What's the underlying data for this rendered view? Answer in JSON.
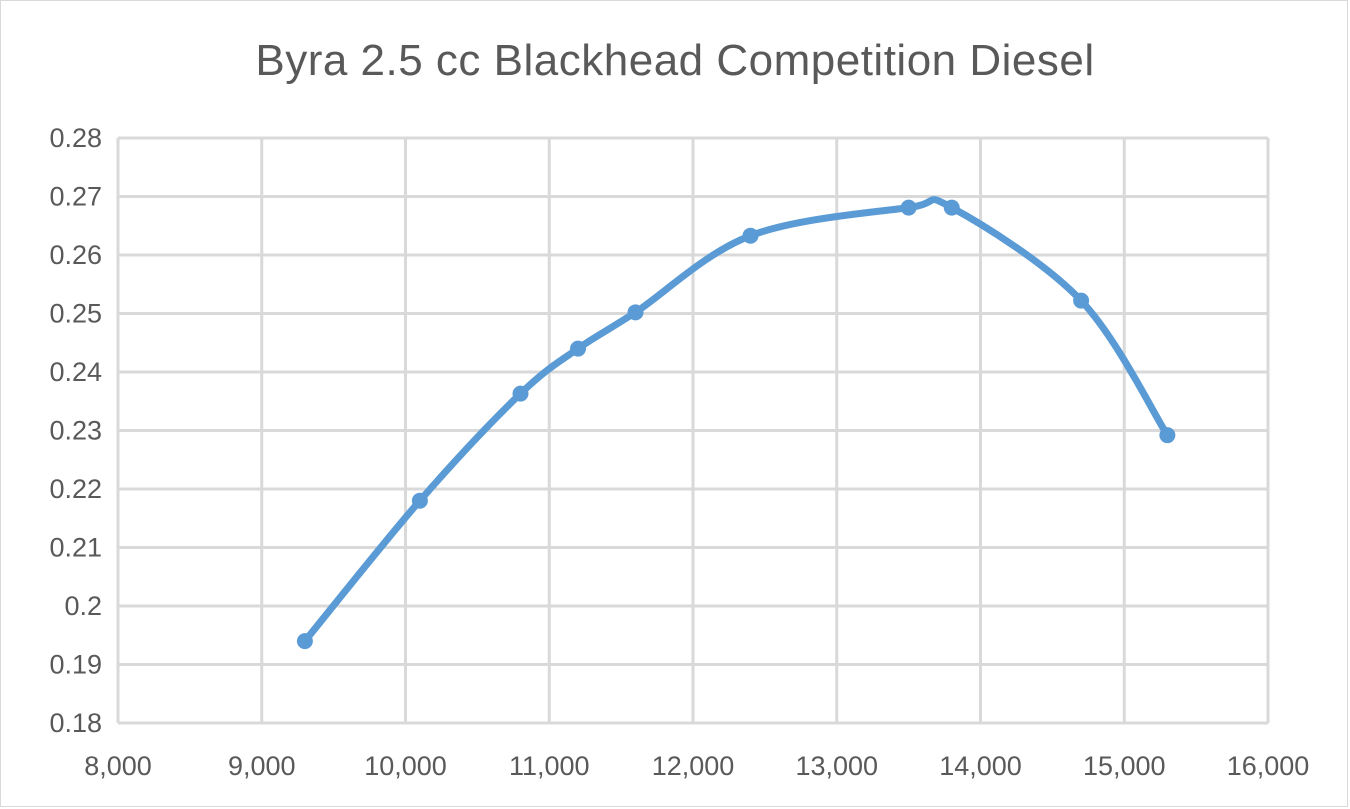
{
  "chart_data": {
    "type": "line",
    "title": "Byra 2.5 cc Blackhead Competition Diesel",
    "xlabel": "",
    "ylabel": "",
    "xlim": [
      8000,
      16000
    ],
    "ylim": [
      0.18,
      0.28
    ],
    "x_ticks": [
      8000,
      9000,
      10000,
      11000,
      12000,
      13000,
      14000,
      15000,
      16000
    ],
    "x_tick_labels": [
      "8,000",
      "9,000",
      "10,000",
      "11,000",
      "12,000",
      "13,000",
      "14,000",
      "15,000",
      "16,000"
    ],
    "y_ticks": [
      0.18,
      0.19,
      0.2,
      0.21,
      0.22,
      0.23,
      0.24,
      0.25,
      0.26,
      0.27,
      0.28
    ],
    "y_tick_labels": [
      "0.18",
      "0.19",
      "0.2",
      "0.21",
      "0.22",
      "0.23",
      "0.24",
      "0.25",
      "0.26",
      "0.27",
      "0.28"
    ],
    "grid": true,
    "smooth": true,
    "series": [
      {
        "color": "#5b9bd5",
        "x": [
          9300,
          10100,
          10800,
          11200,
          11600,
          12400,
          13500,
          13800,
          14700,
          15300
        ],
        "y": [
          0.194,
          0.218,
          0.2363,
          0.244,
          0.2502,
          0.2633,
          0.2681,
          0.2681,
          0.2522,
          0.2292
        ]
      }
    ]
  },
  "colors": {
    "line": "#5b9bd5",
    "grid": "#d9d9d9",
    "text": "#595959"
  }
}
